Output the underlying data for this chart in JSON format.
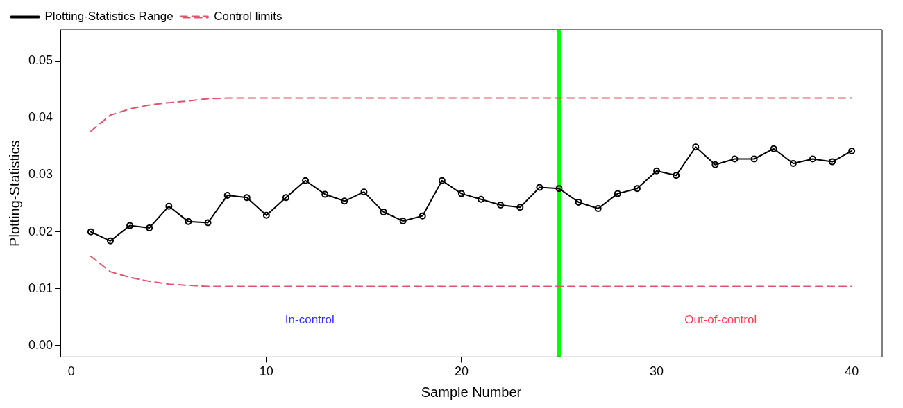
{
  "chart_data": {
    "type": "line",
    "xlabel": "Sample Number",
    "ylabel": "Plotting-Statistics",
    "x": [
      1,
      2,
      3,
      4,
      5,
      6,
      7,
      8,
      9,
      10,
      11,
      12,
      13,
      14,
      15,
      16,
      17,
      18,
      19,
      20,
      21,
      22,
      23,
      24,
      25,
      26,
      27,
      28,
      29,
      30,
      31,
      32,
      33,
      34,
      35,
      36,
      37,
      38,
      39,
      40
    ],
    "series": [
      {
        "name": "Plotting-Statistics Range",
        "color": "#000000",
        "marker": "circle",
        "line_style": "solid",
        "values": [
          0.02,
          0.0184,
          0.0211,
          0.0207,
          0.0245,
          0.0218,
          0.0216,
          0.0264,
          0.026,
          0.0229,
          0.026,
          0.029,
          0.0266,
          0.0254,
          0.027,
          0.0235,
          0.0219,
          0.0228,
          0.029,
          0.0267,
          0.0257,
          0.0247,
          0.0243,
          0.0278,
          0.0276,
          0.0252,
          0.0241,
          0.0267,
          0.0276,
          0.0307,
          0.0299,
          0.0349,
          0.0318,
          0.0328,
          0.0328,
          0.0346,
          0.032,
          0.0328,
          0.0323,
          0.0342
        ]
      },
      {
        "name": "Control limits",
        "color": "#df536b",
        "marker": "none",
        "line_style": "dashed",
        "values": [
          0.0377,
          0.0405,
          0.0416,
          0.0423,
          0.0427,
          0.043,
          0.0434,
          0.0435,
          0.0435,
          0.0435,
          0.0435,
          0.0435,
          0.0435,
          0.0435,
          0.0435,
          0.0435,
          0.0435,
          0.0435,
          0.0435,
          0.0435,
          0.0435,
          0.0435,
          0.0435,
          0.0435,
          0.0435,
          0.0435,
          0.0435,
          0.0435,
          0.0435,
          0.0435,
          0.0435,
          0.0435,
          0.0435,
          0.0435,
          0.0435,
          0.0435,
          0.0435,
          0.0435,
          0.0435,
          0.0435
        ]
      },
      {
        "color": "#df536b",
        "marker": "none",
        "line_style": "dashed",
        "values": [
          0.0157,
          0.013,
          0.012,
          0.0113,
          0.0108,
          0.0106,
          0.0104,
          0.0104,
          0.0104,
          0.0104,
          0.0104,
          0.0104,
          0.0104,
          0.0104,
          0.0104,
          0.0104,
          0.0104,
          0.0104,
          0.0104,
          0.0104,
          0.0104,
          0.0104,
          0.0104,
          0.0104,
          0.0104,
          0.0104,
          0.0104,
          0.0104,
          0.0104,
          0.0104,
          0.0104,
          0.0104,
          0.0104,
          0.0104,
          0.0104,
          0.0104,
          0.0104,
          0.0104,
          0.0104,
          0.0104
        ]
      }
    ],
    "xlim": [
      -0.56,
      41.56
    ],
    "xticks": [
      0,
      10,
      20,
      30,
      40
    ],
    "ylim": [
      -0.002,
      0.0555
    ],
    "yticks": [
      {
        "value": 0,
        "label": "0.00"
      },
      {
        "value": 0.01,
        "label": "0.01"
      },
      {
        "value": 0.02,
        "label": "0.02"
      },
      {
        "value": 0.03,
        "label": "0.03"
      },
      {
        "value": 0.04,
        "label": "0.04"
      },
      {
        "value": 0.05,
        "label": "0.05"
      }
    ],
    "ref_lines": [
      {
        "axis": "x",
        "value": 25,
        "color": "#00ff00"
      }
    ],
    "annotations": [
      "In-control",
      "Out-of-control"
    ],
    "grid": false,
    "legend": "top left"
  }
}
